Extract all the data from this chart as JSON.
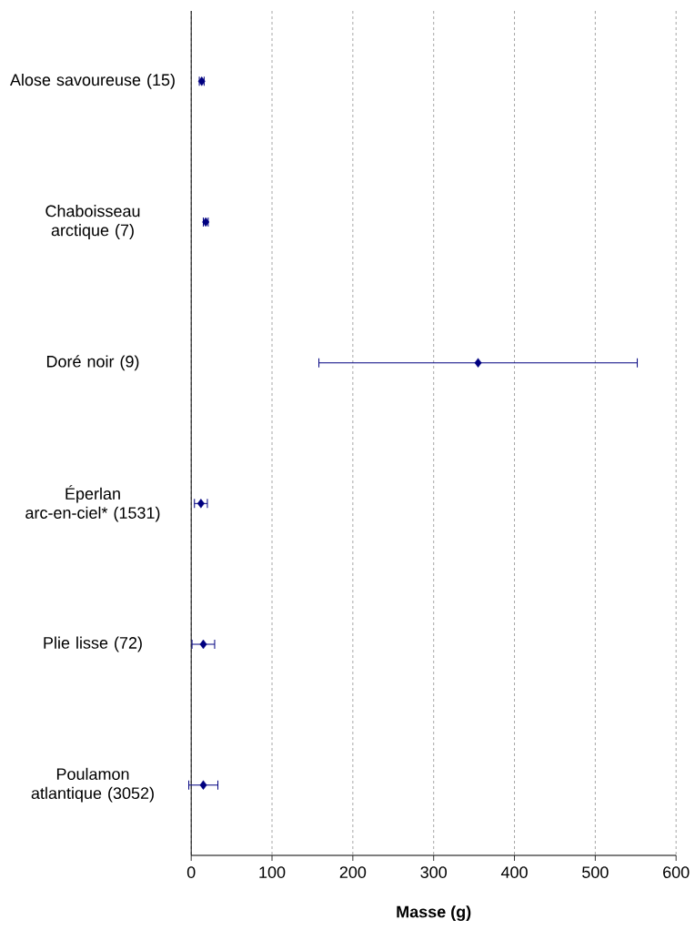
{
  "chart_data": {
    "type": "scatter",
    "orientation": "horizontal",
    "categories": [
      "Alose savoureuse (15)",
      "Chaboisseau arctique (7)",
      "Doré noir (9)",
      "Éperlan arc-en-ciel* (1531)",
      "Plie lisse (72)",
      "Poulamon atlantique (3052)"
    ],
    "values": [
      13,
      18,
      355,
      12,
      15,
      15
    ],
    "errors": [
      3,
      3,
      197,
      8,
      14,
      18
    ],
    "color": "#000080",
    "marker": "diamond",
    "xlabel": "Masse (g)",
    "xlim": [
      0,
      600
    ],
    "xticks": [
      0,
      100,
      200,
      300,
      400,
      500,
      600
    ],
    "grid": "x"
  }
}
